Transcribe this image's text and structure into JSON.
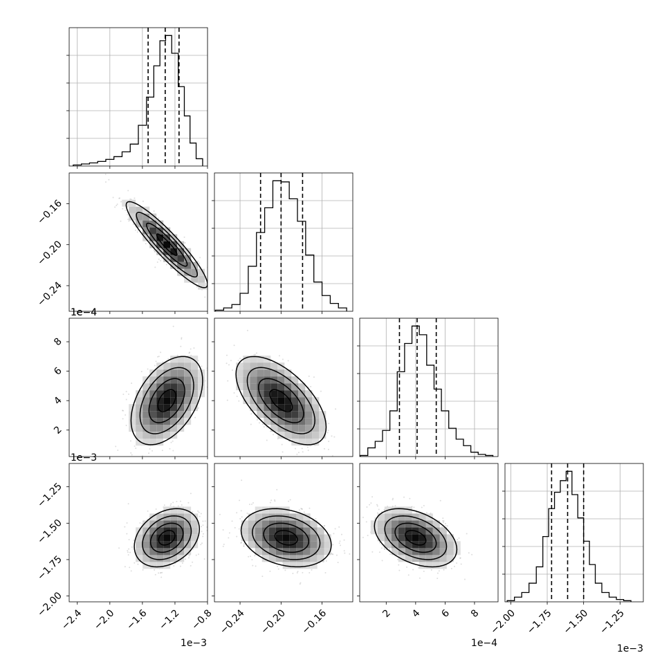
{
  "chart_data": {
    "type": "corner",
    "grid": true,
    "axes_labels": {
      "x": [
        "",
        "",
        "",
        ""
      ],
      "y": [
        "",
        "",
        "",
        ""
      ]
    },
    "params": [
      {
        "range": [
          -2.5,
          -0.8
        ],
        "ticks": [
          -2.4,
          -2.0,
          -1.6,
          -1.2,
          -0.8
        ],
        "tick_labels": [
          "−2.4",
          "−2.0",
          "−1.6",
          "−1.2",
          "−0.8"
        ],
        "offset_text": "1e−3",
        "quantiles": [
          -1.53,
          -1.32,
          -1.15
        ],
        "hist": [
          {
            "x": -2.4,
            "n": 5
          },
          {
            "x": -2.3,
            "n": 10
          },
          {
            "x": -2.2,
            "n": 15
          },
          {
            "x": -2.1,
            "n": 22
          },
          {
            "x": -2.0,
            "n": 32
          },
          {
            "x": -1.9,
            "n": 45
          },
          {
            "x": -1.8,
            "n": 68
          },
          {
            "x": -1.7,
            "n": 105
          },
          {
            "x": -1.6,
            "n": 195
          },
          {
            "x": -1.5,
            "n": 330
          },
          {
            "x": -1.42,
            "n": 480
          },
          {
            "x": -1.35,
            "n": 600
          },
          {
            "x": -1.28,
            "n": 625
          },
          {
            "x": -1.2,
            "n": 540
          },
          {
            "x": -1.12,
            "n": 380
          },
          {
            "x": -1.05,
            "n": 240
          },
          {
            "x": -0.98,
            "n": 110
          },
          {
            "x": -0.9,
            "n": 35
          }
        ]
      },
      {
        "range": [
          -0.265,
          -0.13
        ],
        "ticks": [
          -0.24,
          -0.2,
          -0.16
        ],
        "tick_labels": [
          "−0.24",
          "−0.20",
          "−0.16"
        ],
        "offset_text": "",
        "quantiles": [
          -0.22,
          -0.2,
          -0.179
        ],
        "hist": [
          {
            "x": -0.26,
            "n": 5
          },
          {
            "x": -0.252,
            "n": 15
          },
          {
            "x": -0.244,
            "n": 30
          },
          {
            "x": -0.236,
            "n": 80
          },
          {
            "x": -0.228,
            "n": 200
          },
          {
            "x": -0.22,
            "n": 350
          },
          {
            "x": -0.212,
            "n": 460
          },
          {
            "x": -0.204,
            "n": 580
          },
          {
            "x": -0.196,
            "n": 575
          },
          {
            "x": -0.188,
            "n": 500
          },
          {
            "x": -0.18,
            "n": 400
          },
          {
            "x": -0.172,
            "n": 250
          },
          {
            "x": -0.164,
            "n": 130
          },
          {
            "x": -0.156,
            "n": 70
          },
          {
            "x": -0.148,
            "n": 35
          },
          {
            "x": -0.14,
            "n": 15
          }
        ]
      },
      {
        "range": [
          0.2,
          9.6
        ],
        "ticks": [
          2,
          4,
          6,
          8
        ],
        "tick_labels": [
          "2",
          "4",
          "6",
          "8"
        ],
        "offset_text": "1e−4",
        "quantiles": [
          2.9,
          4.1,
          5.4
        ],
        "hist": [
          {
            "x": 0.5,
            "n": 5
          },
          {
            "x": 1.0,
            "n": 40
          },
          {
            "x": 1.5,
            "n": 70
          },
          {
            "x": 2.0,
            "n": 120
          },
          {
            "x": 2.5,
            "n": 210
          },
          {
            "x": 3.0,
            "n": 390
          },
          {
            "x": 3.5,
            "n": 520
          },
          {
            "x": 4.0,
            "n": 600
          },
          {
            "x": 4.5,
            "n": 560
          },
          {
            "x": 5.0,
            "n": 420
          },
          {
            "x": 5.5,
            "n": 310
          },
          {
            "x": 6.0,
            "n": 210
          },
          {
            "x": 6.5,
            "n": 130
          },
          {
            "x": 7.0,
            "n": 80
          },
          {
            "x": 7.5,
            "n": 50
          },
          {
            "x": 8.0,
            "n": 20
          },
          {
            "x": 8.5,
            "n": 10
          },
          {
            "x": 9.0,
            "n": 5
          }
        ]
      },
      {
        "range": [
          -2.04,
          -1.09
        ],
        "ticks": [
          -2.0,
          -1.75,
          -1.5,
          -1.25
        ],
        "tick_labels": [
          "−2.00",
          "−1.75",
          "−1.50",
          "−1.25"
        ],
        "offset_text": "1e−3",
        "quantiles": [
          -1.72,
          -1.61,
          -1.5
        ],
        "hist": [
          {
            "x": -2.0,
            "n": 5
          },
          {
            "x": -1.95,
            "n": 20
          },
          {
            "x": -1.9,
            "n": 40
          },
          {
            "x": -1.85,
            "n": 80
          },
          {
            "x": -1.8,
            "n": 150
          },
          {
            "x": -1.76,
            "n": 280
          },
          {
            "x": -1.72,
            "n": 400
          },
          {
            "x": -1.68,
            "n": 470
          },
          {
            "x": -1.64,
            "n": 520
          },
          {
            "x": -1.6,
            "n": 560
          },
          {
            "x": -1.56,
            "n": 460
          },
          {
            "x": -1.52,
            "n": 360
          },
          {
            "x": -1.48,
            "n": 260
          },
          {
            "x": -1.44,
            "n": 160
          },
          {
            "x": -1.4,
            "n": 80
          },
          {
            "x": -1.35,
            "n": 40
          },
          {
            "x": -1.3,
            "n": 20
          },
          {
            "x": -1.25,
            "n": 10
          },
          {
            "x": -1.2,
            "n": 5
          }
        ]
      }
    ],
    "pairs": [
      {
        "row": 1,
        "col": 0,
        "mean": [
          -1.3,
          -0.2
        ],
        "sd": [
          0.25,
          0.021
        ],
        "corr": -0.92
      },
      {
        "row": 2,
        "col": 0,
        "mean": [
          -1.3,
          4.0
        ],
        "sd": [
          0.22,
          1.5
        ],
        "corr": 0.45
      },
      {
        "row": 2,
        "col": 1,
        "mean": [
          -0.2,
          4.0
        ],
        "sd": [
          0.022,
          1.5
        ],
        "corr": -0.6
      },
      {
        "row": 3,
        "col": 0,
        "mean": [
          -1.3,
          -1.6
        ],
        "sd": [
          0.2,
          0.1
        ],
        "corr": 0.3
      },
      {
        "row": 3,
        "col": 1,
        "mean": [
          -0.195,
          -1.6
        ],
        "sd": [
          0.022,
          0.1
        ],
        "corr": -0.25
      },
      {
        "row": 3,
        "col": 2,
        "mean": [
          4.0,
          -1.6
        ],
        "sd": [
          1.4,
          0.1
        ],
        "corr": -0.4
      }
    ]
  }
}
